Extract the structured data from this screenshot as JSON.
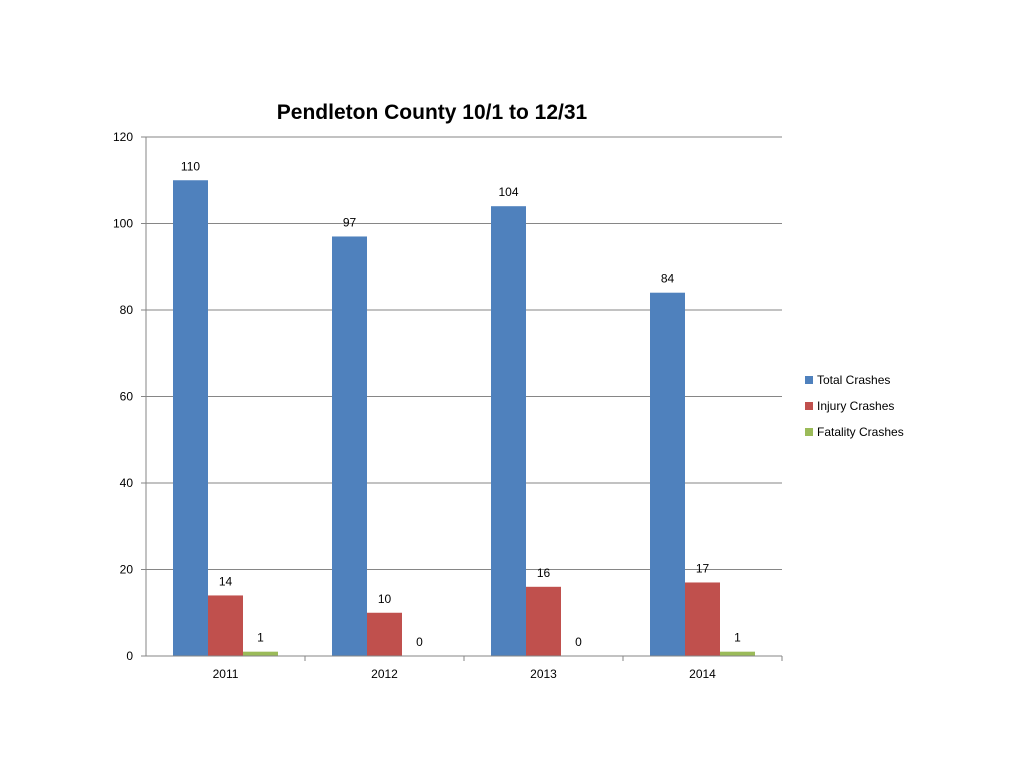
{
  "chart_data": {
    "type": "bar",
    "title": "Pendleton County 10/1 to 12/31",
    "xlabel": "",
    "ylabel": "",
    "categories": [
      "2011",
      "2012",
      "2013",
      "2014"
    ],
    "series": [
      {
        "name": "Total Crashes",
        "values": [
          110,
          97,
          104,
          84
        ],
        "color": "#4F81BD"
      },
      {
        "name": "Injury Crashes",
        "values": [
          14,
          10,
          16,
          17
        ],
        "color": "#C0504D"
      },
      {
        "name": "Fatality Crashes",
        "values": [
          1,
          0,
          0,
          1
        ],
        "color": "#9BBB59"
      }
    ],
    "ylim": [
      0,
      120
    ],
    "yticks": [
      "0",
      "20",
      "40",
      "60",
      "80",
      "100",
      "120"
    ],
    "grid": true,
    "legend": "right"
  }
}
